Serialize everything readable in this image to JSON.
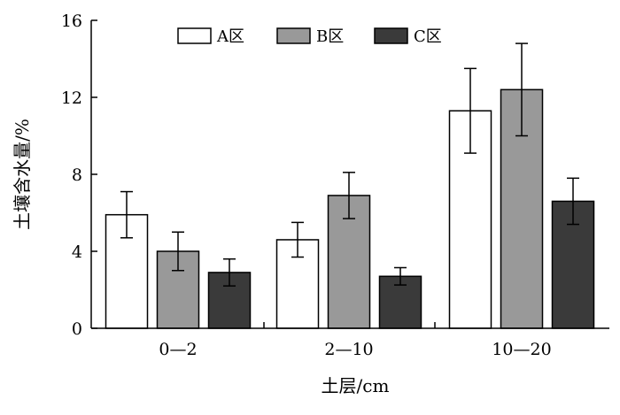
{
  "chart_data": {
    "type": "bar",
    "title": "",
    "xlabel": "土层/cm",
    "ylabel": "土壤含水量/%",
    "categories": [
      "0—2",
      "2—10",
      "10—20"
    ],
    "ylim": [
      0,
      16
    ],
    "yticks": [
      0,
      4,
      8,
      12,
      16
    ],
    "grid": false,
    "legend_position": "top",
    "series": [
      {
        "name": "A区",
        "color": "#ffffff",
        "values": [
          5.9,
          4.6,
          11.3
        ],
        "errors": [
          1.2,
          0.9,
          2.2
        ]
      },
      {
        "name": "B区",
        "color": "#999999",
        "values": [
          4.0,
          6.9,
          12.4
        ],
        "errors": [
          1.0,
          1.2,
          2.4
        ]
      },
      {
        "name": "C区",
        "color": "#3a3a3a",
        "values": [
          2.9,
          2.7,
          6.6
        ],
        "errors": [
          0.7,
          0.45,
          1.2
        ]
      }
    ]
  }
}
